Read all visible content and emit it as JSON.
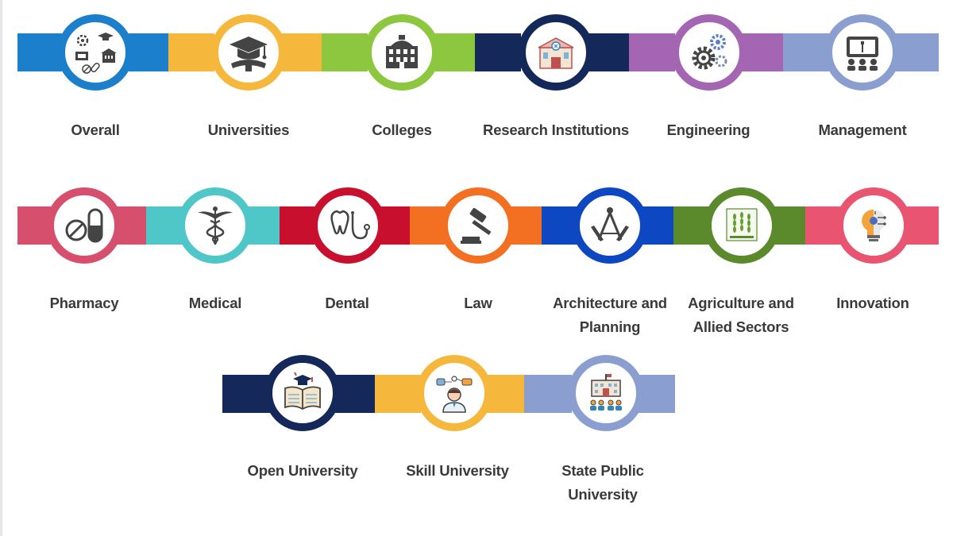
{
  "categories": [
    {
      "label": "Overall",
      "color": "#1b7fcb",
      "icon": "overall-collage-icon"
    },
    {
      "label": "Universities",
      "color": "#f5b83d",
      "icon": "graduation-cap-icon"
    },
    {
      "label": "Colleges",
      "color": "#8dc63f",
      "icon": "college-building-icon"
    },
    {
      "label": "Research Institutions",
      "color": "#14285a",
      "icon": "research-lab-icon"
    },
    {
      "label": "Engineering",
      "color": "#a465b3",
      "icon": "gears-icon"
    },
    {
      "label": "Management",
      "color": "#8a9fd0",
      "icon": "presentation-icon"
    },
    {
      "label": "Pharmacy",
      "color": "#d64f6c",
      "icon": "pill-capsule-icon"
    },
    {
      "label": "Medical",
      "color": "#4fc6c8",
      "icon": "caduceus-icon"
    },
    {
      "label": "Dental",
      "color": "#c8102e",
      "icon": "tooth-stethoscope-icon"
    },
    {
      "label": "Law",
      "color": "#f36f21",
      "icon": "gavel-icon"
    },
    {
      "label": "Architecture and Planning",
      "color": "#0d47c2",
      "icon": "compass-square-icon"
    },
    {
      "label": "Agriculture and Allied Sectors",
      "color": "#5a8a2c",
      "icon": "wheat-icon"
    },
    {
      "label": "Innovation",
      "color": "#e95470",
      "icon": "lightbulb-circuit-icon"
    },
    {
      "label": "Open University",
      "color": "#14285a",
      "icon": "open-book-cap-icon"
    },
    {
      "label": "Skill University",
      "color": "#f5b83d",
      "icon": "skill-person-icon"
    },
    {
      "label": "State Public University",
      "color": "#8a9fd0",
      "icon": "state-building-icon"
    }
  ]
}
